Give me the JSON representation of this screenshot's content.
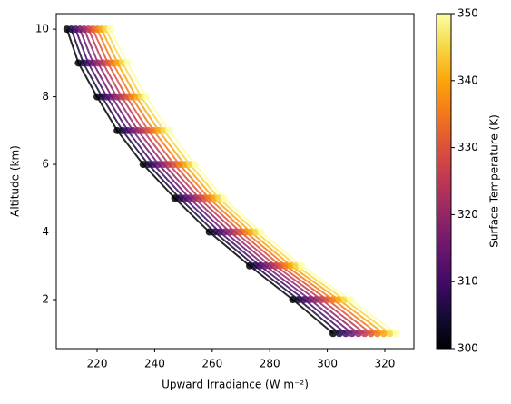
{
  "chart_data": {
    "type": "line",
    "xlabel": "Upward Irradiance (W m⁻²)",
    "ylabel": "Altitude (km)",
    "colorbar_label": "Surface Temperature (K)",
    "y": [
      1,
      2,
      3,
      4,
      5,
      6,
      7,
      8,
      9,
      10
    ],
    "series": [
      {
        "color": "#000004",
        "values": [
          302,
          288,
          273,
          259,
          247,
          236,
          227,
          220,
          213.5,
          209.5
        ]
      },
      {
        "color": "#160b39",
        "values": [
          304.2,
          290,
          274.8,
          260.8,
          248.7,
          237.8,
          228.8,
          221.7,
          215.2,
          211
        ]
      },
      {
        "color": "#420a68",
        "values": [
          306.4,
          292,
          276.6,
          262.6,
          250.4,
          239.6,
          230.6,
          223.4,
          216.9,
          212.5
        ]
      },
      {
        "color": "#6a176e",
        "values": [
          308.6,
          294,
          278.4,
          264.4,
          252.1,
          241.4,
          232.4,
          225.1,
          218.6,
          214
        ]
      },
      {
        "color": "#932667",
        "values": [
          310.8,
          296,
          280.2,
          266.2,
          253.8,
          243.2,
          234.2,
          226.8,
          220.3,
          215.5
        ]
      },
      {
        "color": "#bc3754",
        "values": [
          313,
          298,
          282,
          268,
          255.5,
          245,
          236,
          228.5,
          222,
          217
        ]
      },
      {
        "color": "#dd513a",
        "values": [
          315.2,
          300,
          283.8,
          269.8,
          257.2,
          246.8,
          237.8,
          230.2,
          223.7,
          218.5
        ]
      },
      {
        "color": "#f37819",
        "values": [
          317.4,
          302,
          285.6,
          271.6,
          258.9,
          248.6,
          239.6,
          231.9,
          225.4,
          220
        ]
      },
      {
        "color": "#fca50a",
        "values": [
          319.6,
          304,
          287.4,
          273.4,
          260.6,
          250.4,
          241.4,
          233.6,
          227.1,
          221.5
        ]
      },
      {
        "color": "#f6d746",
        "values": [
          321.8,
          306,
          289.2,
          275.2,
          262.3,
          252.2,
          243.2,
          235.3,
          228.8,
          223
        ]
      },
      {
        "color": "#fcffa4",
        "values": [
          324,
          308,
          291,
          277,
          264,
          254,
          245,
          237,
          230.5,
          224.5
        ]
      }
    ],
    "xlim": [
      205.8,
      330.1
    ],
    "xticks": [
      220,
      240,
      260,
      280,
      300,
      320
    ],
    "ylim": [
      0.55,
      10.46
    ],
    "yticks": [
      2,
      4,
      6,
      8,
      10
    ],
    "clim": [
      300,
      350
    ],
    "cticks": [
      300,
      310,
      320,
      330,
      340,
      350
    ],
    "colormap": [
      "#000004",
      "#160b39",
      "#420a68",
      "#6a176e",
      "#932667",
      "#bc3754",
      "#dd513a",
      "#f37819",
      "#fca50a",
      "#f6d746",
      "#fcffa4"
    ]
  }
}
